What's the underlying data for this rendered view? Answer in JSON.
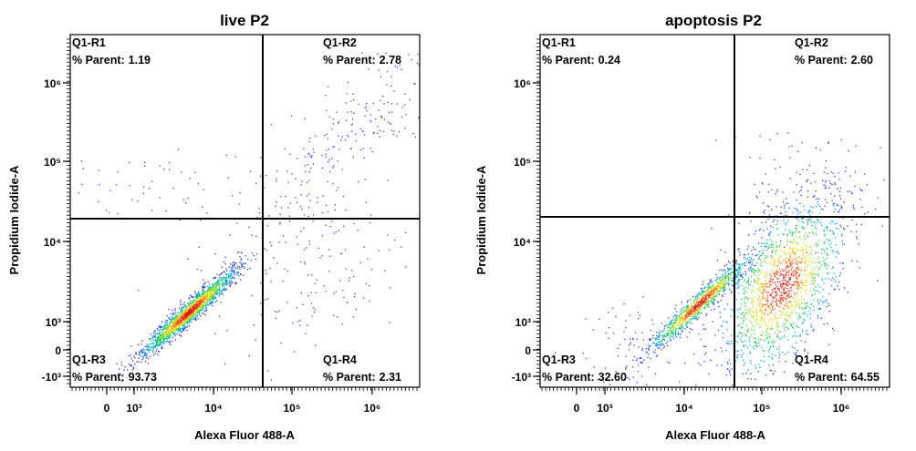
{
  "chart_data": [
    {
      "type": "scatter",
      "title": "live P2",
      "xlabel": "Alexa Fluor 488-A",
      "ylabel": "Propidium Iodide-A",
      "x_scale": "biexponential",
      "y_scale": "biexponential",
      "x_ticks": [
        "0",
        "10³",
        "10⁴",
        "10⁵",
        "10⁶"
      ],
      "y_ticks": [
        "10⁶",
        "10⁵",
        "10⁴",
        "10³",
        "0",
        "-10³"
      ],
      "gate": {
        "x": 40000,
        "y": 19000
      },
      "quadrants": [
        {
          "name": "Q1-R1",
          "stat_label": "% Parent:",
          "value": "1.19",
          "position": "top-left"
        },
        {
          "name": "Q1-R2",
          "stat_label": "% Parent:",
          "value": "2.78",
          "position": "top-right"
        },
        {
          "name": "Q1-R3",
          "stat_label": "% Parent:",
          "value": "93.73",
          "position": "bottom-left"
        },
        {
          "name": "Q1-R4",
          "stat_label": "% Parent:",
          "value": "2.31",
          "position": "bottom-right"
        }
      ],
      "populations": [
        {
          "center_x": 5000,
          "center_y": 1200,
          "density": "high"
        },
        {
          "center_x": 300000,
          "center_y": 150000,
          "density": "low"
        }
      ]
    },
    {
      "type": "scatter",
      "title": "apoptosis P2",
      "xlabel": "Alexa Fluor 488-A",
      "ylabel": "Propidium Iodide-A",
      "x_scale": "biexponential",
      "y_scale": "biexponential",
      "x_ticks": [
        "0",
        "10³",
        "10⁴",
        "10⁵",
        "10⁶"
      ],
      "y_ticks": [
        "10⁶",
        "10⁵",
        "10⁴",
        "10³",
        "0",
        "-10³"
      ],
      "gate": {
        "x": 40000,
        "y": 19000
      },
      "quadrants": [
        {
          "name": "Q1-R1",
          "stat_label": "% Parent:",
          "value": "0.24",
          "position": "top-left"
        },
        {
          "name": "Q1-R2",
          "stat_label": "% Parent:",
          "value": "2.60",
          "position": "top-right"
        },
        {
          "name": "Q1-R3",
          "stat_label": "% Parent:",
          "value": "32.60",
          "position": "bottom-left"
        },
        {
          "name": "Q1-R4",
          "stat_label": "% Parent:",
          "value": "64.55",
          "position": "bottom-right"
        }
      ],
      "populations": [
        {
          "center_x": 16000,
          "center_y": 1700,
          "density": "high"
        },
        {
          "center_x": 170000,
          "center_y": 3000,
          "density": "high"
        }
      ]
    }
  ]
}
